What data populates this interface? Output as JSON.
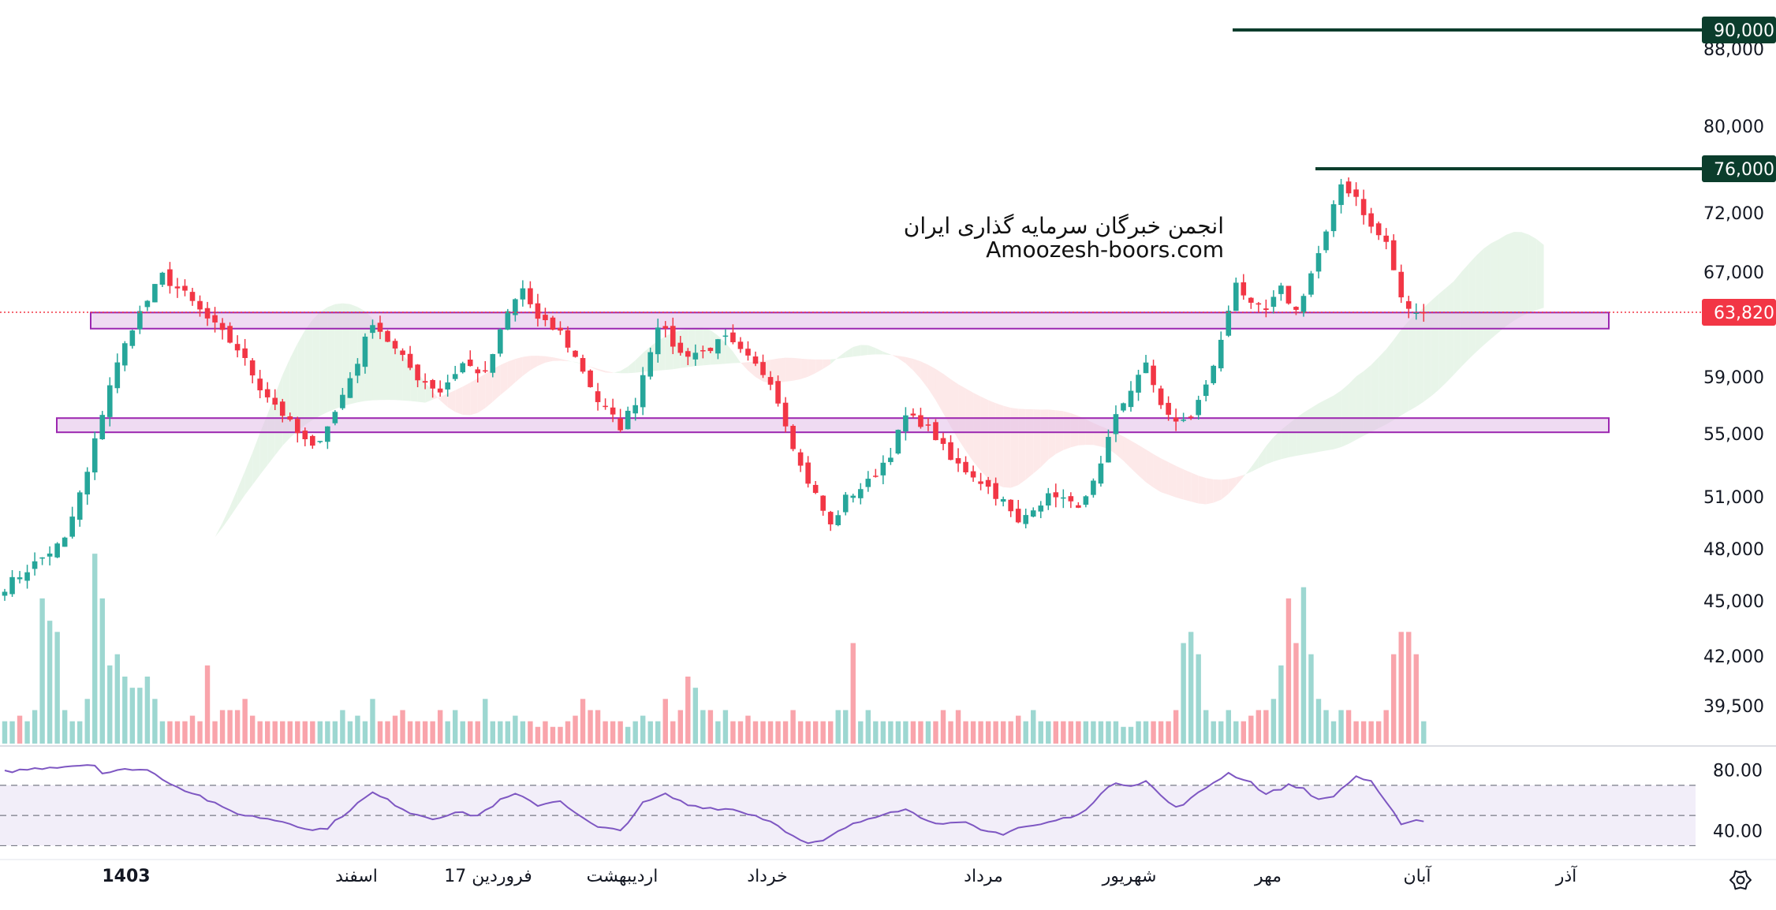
{
  "watermark": {
    "line1": "انجمن خبرگان سرمایه گذاری ایران",
    "line2": "Amoozesh-boors.com"
  },
  "settings_icon": "gear-icon",
  "colors": {
    "up": "#26a69a",
    "down": "#f23645",
    "zone": "#9c27b0",
    "cloud_bull": "#e8f5e9",
    "cloud_bear": "#fde9e9",
    "rsi_line": "#7e57c2",
    "level_line": "#0b3d2c"
  },
  "chart_data": [
    {
      "type": "candlestick",
      "title": "",
      "price_axis": {
        "ticks": [
          88000,
          80000,
          72000,
          67000,
          59000,
          55000,
          51000,
          48000,
          45000,
          42000,
          39500
        ],
        "tick_labels": [
          "88,000",
          "80,000",
          "72,000",
          "67,000",
          "59,000",
          "55,000",
          "51,000",
          "48,000",
          "45,000",
          "42,000",
          "39,500"
        ],
        "ylim": [
          38500,
          92000
        ]
      },
      "time_axis": {
        "labels": [
          "1403",
          "اسفند",
          "17 فروردین",
          "اردیبهشت",
          "خرداد",
          "مرداد",
          "شهریور",
          "مهر",
          "آبان",
          "آذر"
        ]
      },
      "current_price": {
        "value": 63820,
        "label": "63,820"
      },
      "horizontal_levels": [
        {
          "value": 90000,
          "label": "90,000"
        },
        {
          "value": 76000,
          "label": "76,000"
        }
      ],
      "zones": [
        {
          "low": 62600,
          "high": 63800
        },
        {
          "low": 55100,
          "high": 56100
        }
      ],
      "price_path": [
        [
          0,
          45800
        ],
        [
          8,
          48500
        ],
        [
          11,
          52500
        ],
        [
          14,
          58500
        ],
        [
          17,
          62800
        ],
        [
          21,
          66700
        ],
        [
          24,
          65200
        ],
        [
          27,
          63300
        ],
        [
          31,
          61100
        ],
        [
          34,
          58300
        ],
        [
          36,
          57100
        ],
        [
          39,
          55000
        ],
        [
          41,
          54000
        ],
        [
          44,
          56500
        ],
        [
          47,
          60200
        ],
        [
          49,
          63200
        ],
        [
          52,
          61000
        ],
        [
          55,
          59000
        ],
        [
          58,
          58000
        ],
        [
          61,
          60000
        ],
        [
          64,
          59200
        ],
        [
          67,
          63800
        ],
        [
          69,
          65700
        ],
        [
          71,
          63200
        ],
        [
          74,
          62300
        ],
        [
          77,
          59500
        ],
        [
          79,
          57300
        ],
        [
          82,
          55500
        ],
        [
          84,
          57300
        ],
        [
          87,
          63000
        ],
        [
          90,
          60700
        ],
        [
          93,
          60900
        ],
        [
          96,
          61800
        ],
        [
          99,
          60300
        ],
        [
          102,
          58800
        ],
        [
          104,
          55800
        ],
        [
          106,
          52900
        ],
        [
          108,
          51100
        ],
        [
          110,
          49300
        ],
        [
          112,
          50900
        ],
        [
          115,
          51900
        ],
        [
          118,
          53800
        ],
        [
          120,
          56200
        ],
        [
          122,
          55800
        ],
        [
          124,
          54800
        ],
        [
          126,
          53300
        ],
        [
          129,
          52400
        ],
        [
          131,
          51600
        ],
        [
          133,
          50700
        ],
        [
          135,
          49400
        ],
        [
          137,
          50500
        ],
        [
          140,
          51200
        ],
        [
          142,
          50500
        ],
        [
          144,
          50800
        ],
        [
          146,
          52800
        ],
        [
          148,
          56200
        ],
        [
          150,
          58200
        ],
        [
          152,
          59800
        ],
        [
          154,
          57200
        ],
        [
          156,
          55600
        ],
        [
          158,
          56300
        ],
        [
          160,
          58300
        ],
        [
          162,
          61600
        ],
        [
          164,
          66400
        ],
        [
          166,
          64200
        ],
        [
          168,
          63900
        ],
        [
          170,
          65600
        ],
        [
          172,
          63900
        ],
        [
          174,
          66900
        ],
        [
          176,
          70200
        ],
        [
          178,
          74600
        ],
        [
          180,
          73500
        ],
        [
          182,
          70700
        ],
        [
          184,
          69500
        ],
        [
          186,
          64800
        ],
        [
          188,
          63600
        ],
        [
          189,
          63820
        ]
      ],
      "volume": {
        "values": [
          2,
          2,
          2.5,
          2,
          3,
          13,
          11,
          10,
          3,
          2,
          2,
          4,
          17,
          13,
          7,
          8,
          6,
          5,
          5,
          6,
          4,
          2,
          2,
          2,
          2,
          2.5,
          2,
          7,
          2,
          3,
          3,
          3,
          4,
          2.5,
          2,
          2,
          2,
          2,
          2,
          2,
          2,
          2,
          2,
          2,
          2,
          3,
          2,
          2.5,
          2,
          4,
          2,
          2,
          2.5,
          3,
          2,
          2,
          2,
          2,
          3,
          2,
          3,
          2,
          2,
          2,
          4,
          2,
          2,
          2,
          2.5,
          2,
          2,
          1.5,
          2,
          1.5,
          1.5,
          2,
          2.5,
          4,
          3,
          3,
          2,
          2,
          2,
          1.5,
          2,
          2.5,
          2,
          2,
          4,
          2,
          3,
          6,
          5,
          3,
          3,
          2,
          3,
          2,
          2,
          2.5,
          2,
          2,
          2,
          2,
          2,
          3,
          2,
          2,
          2,
          2,
          2,
          3,
          3,
          9,
          2,
          3,
          2,
          2,
          2,
          2,
          2,
          2,
          2,
          2,
          2,
          3,
          2,
          3,
          2,
          2,
          2,
          2,
          2,
          2,
          2,
          2.5,
          2,
          3,
          2,
          2,
          2,
          2,
          2,
          2,
          2,
          2,
          2,
          2,
          2,
          1.5,
          1.5,
          2,
          2,
          2,
          2,
          2,
          3,
          9,
          10,
          8,
          3,
          2,
          2,
          3,
          2,
          2,
          2.5,
          3,
          3,
          4,
          7,
          13,
          9,
          14,
          8,
          4,
          3,
          2,
          3,
          3,
          2,
          2,
          2,
          2,
          3,
          8,
          10,
          10,
          8,
          2,
          3,
          2.5,
          3,
          2.5,
          3,
          2,
          2,
          2,
          2
        ]
      }
    },
    {
      "type": "line",
      "title": "",
      "y_axis": {
        "ticks": [
          80,
          40
        ],
        "tick_labels": [
          "80.00",
          "40.00"
        ],
        "ylim": [
          25,
          95
        ],
        "band": [
          30,
          70
        ],
        "midline": 50
      },
      "rsi_path": [
        [
          0,
          79
        ],
        [
          6,
          82
        ],
        [
          12,
          84
        ],
        [
          13,
          78
        ],
        [
          17,
          81
        ],
        [
          19,
          80
        ],
        [
          23,
          69
        ],
        [
          26,
          63
        ],
        [
          29,
          55
        ],
        [
          32,
          50
        ],
        [
          35,
          48
        ],
        [
          38,
          45
        ],
        [
          41,
          40
        ],
        [
          43,
          42
        ],
        [
          47,
          58
        ],
        [
          49,
          65
        ],
        [
          51,
          60
        ],
        [
          54,
          52
        ],
        [
          57,
          48
        ],
        [
          60,
          52
        ],
        [
          63,
          50
        ],
        [
          66,
          60
        ],
        [
          68,
          64
        ],
        [
          71,
          57
        ],
        [
          74,
          60
        ],
        [
          77,
          48
        ],
        [
          79,
          42
        ],
        [
          82,
          40
        ],
        [
          85,
          58
        ],
        [
          88,
          64
        ],
        [
          91,
          57
        ],
        [
          94,
          55
        ],
        [
          97,
          54
        ],
        [
          100,
          50
        ],
        [
          103,
          44
        ],
        [
          105,
          36
        ],
        [
          107,
          31
        ],
        [
          109,
          33
        ],
        [
          112,
          42
        ],
        [
          115,
          48
        ],
        [
          118,
          53
        ],
        [
          120,
          54
        ],
        [
          122,
          49
        ],
        [
          125,
          44
        ],
        [
          128,
          45
        ],
        [
          130,
          40
        ],
        [
          133,
          38
        ],
        [
          135,
          42
        ],
        [
          138,
          44
        ],
        [
          141,
          48
        ],
        [
          143,
          50
        ],
        [
          146,
          64
        ],
        [
          148,
          72
        ],
        [
          150,
          70
        ],
        [
          152,
          73
        ],
        [
          154,
          63
        ],
        [
          156,
          55
        ],
        [
          158,
          61
        ],
        [
          161,
          72
        ],
        [
          163,
          78
        ],
        [
          166,
          72
        ],
        [
          168,
          64
        ],
        [
          171,
          70
        ],
        [
          173,
          68
        ],
        [
          175,
          60
        ],
        [
          177,
          63
        ],
        [
          180,
          76
        ],
        [
          182,
          72
        ],
        [
          184,
          58
        ],
        [
          186,
          45
        ],
        [
          188,
          47
        ],
        [
          189,
          46
        ]
      ]
    }
  ]
}
